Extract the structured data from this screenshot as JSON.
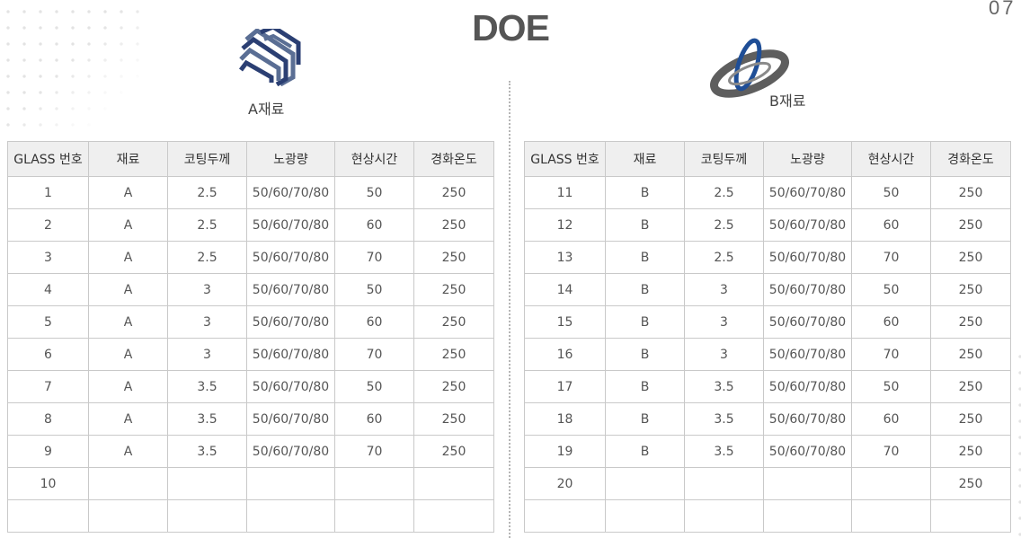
{
  "title": "DOE",
  "page_number": "07",
  "material_a": {
    "label": "A재료",
    "logo_icon": "striped-square-logo",
    "colors": [
      "#2b3f73",
      "#5a6e94"
    ]
  },
  "material_b": {
    "label": "B재료",
    "logo_icon": "orbit-ring-logo",
    "colors": [
      "#5a5a5a",
      "#1f4e96"
    ]
  },
  "columns": [
    "GLASS 번호",
    "재료",
    "코팅두께",
    "노광량",
    "현상시간",
    "경화온도"
  ],
  "table_a": {
    "rows": [
      [
        "1",
        "A",
        "2.5",
        "50/60/70/80",
        "50",
        "250"
      ],
      [
        "2",
        "A",
        "2.5",
        "50/60/70/80",
        "60",
        "250"
      ],
      [
        "3",
        "A",
        "2.5",
        "50/60/70/80",
        "70",
        "250"
      ],
      [
        "4",
        "A",
        "3",
        "50/60/70/80",
        "50",
        "250"
      ],
      [
        "5",
        "A",
        "3",
        "50/60/70/80",
        "60",
        "250"
      ],
      [
        "6",
        "A",
        "3",
        "50/60/70/80",
        "70",
        "250"
      ],
      [
        "7",
        "A",
        "3.5",
        "50/60/70/80",
        "50",
        "250"
      ],
      [
        "8",
        "A",
        "3.5",
        "50/60/70/80",
        "60",
        "250"
      ],
      [
        "9",
        "A",
        "3.5",
        "50/60/70/80",
        "70",
        "250"
      ],
      [
        "10",
        "",
        "",
        "",
        "",
        ""
      ],
      [
        "",
        "",
        "",
        "",
        "",
        ""
      ]
    ]
  },
  "table_b": {
    "rows": [
      [
        "11",
        "B",
        "2.5",
        "50/60/70/80",
        "50",
        "250"
      ],
      [
        "12",
        "B",
        "2.5",
        "50/60/70/80",
        "60",
        "250"
      ],
      [
        "13",
        "B",
        "2.5",
        "50/60/70/80",
        "70",
        "250"
      ],
      [
        "14",
        "B",
        "3",
        "50/60/70/80",
        "50",
        "250"
      ],
      [
        "15",
        "B",
        "3",
        "50/60/70/80",
        "60",
        "250"
      ],
      [
        "16",
        "B",
        "3",
        "50/60/70/80",
        "70",
        "250"
      ],
      [
        "17",
        "B",
        "3.5",
        "50/60/70/80",
        "50",
        "250"
      ],
      [
        "18",
        "B",
        "3.5",
        "50/60/70/80",
        "60",
        "250"
      ],
      [
        "19",
        "B",
        "3.5",
        "50/60/70/80",
        "70",
        "250"
      ],
      [
        "20",
        "",
        "",
        "",
        "",
        "250"
      ],
      [
        "",
        "",
        "",
        "",
        "",
        ""
      ]
    ]
  }
}
